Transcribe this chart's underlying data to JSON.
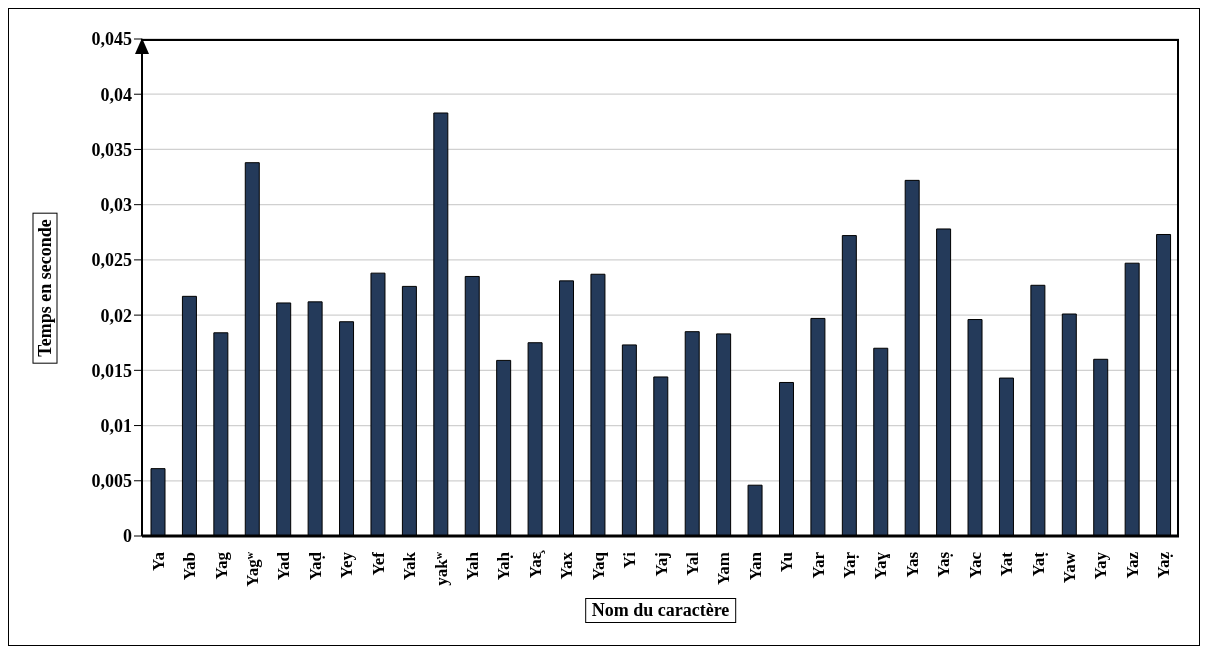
{
  "chart_data": {
    "type": "bar",
    "xlabel": "Nom du caractère",
    "ylabel": "Temps en seconde",
    "categories": [
      "Ya",
      "Yab",
      "Yag",
      "Yagʷ",
      "Yad",
      "Yaḍ",
      "Yey",
      "Yef",
      "Yak",
      "yakʷ",
      "Yah",
      "Yaḥ",
      "Yaɛ̧",
      "Yax",
      "Yaq",
      "Yi",
      "Yaj",
      "Yal",
      "Yam",
      "Yan",
      "Yu",
      "Yar",
      "Yaṛ",
      "Yaɣ",
      "Yas",
      "Yaṣ",
      "Yac",
      "Yat",
      "Yaṭ",
      "Yaw",
      "Yay",
      "Yaz",
      "Yaẓ"
    ],
    "values": [
      0.0061,
      0.0217,
      0.0184,
      0.0338,
      0.0211,
      0.0212,
      0.0194,
      0.0238,
      0.0226,
      0.0383,
      0.0235,
      0.0159,
      0.0175,
      0.0231,
      0.0237,
      0.0173,
      0.0144,
      0.0185,
      0.0183,
      0.0046,
      0.0139,
      0.0197,
      0.0272,
      0.017,
      0.0322,
      0.0278,
      0.0196,
      0.0143,
      0.0227,
      0.0201,
      0.016,
      0.0247,
      0.0273
    ],
    "color": "#243a5a",
    "ylim": [
      0,
      0.045
    ],
    "yticks": [
      0,
      {
        "value": 0.005,
        "label": "0,005"
      },
      {
        "value": 0.01,
        "label": "0,01"
      },
      {
        "value": 0.015,
        "label": "0,015"
      },
      {
        "value": 0.02,
        "label": "0,02"
      },
      {
        "value": 0.025,
        "label": "0,025"
      },
      {
        "value": 0.03,
        "label": "0,03"
      },
      {
        "value": 0.035,
        "label": "0,035"
      },
      {
        "value": 0.04,
        "label": "0,04"
      },
      {
        "value": 0.045,
        "label": "0,045"
      }
    ],
    "grid": "y",
    "legend": false
  }
}
